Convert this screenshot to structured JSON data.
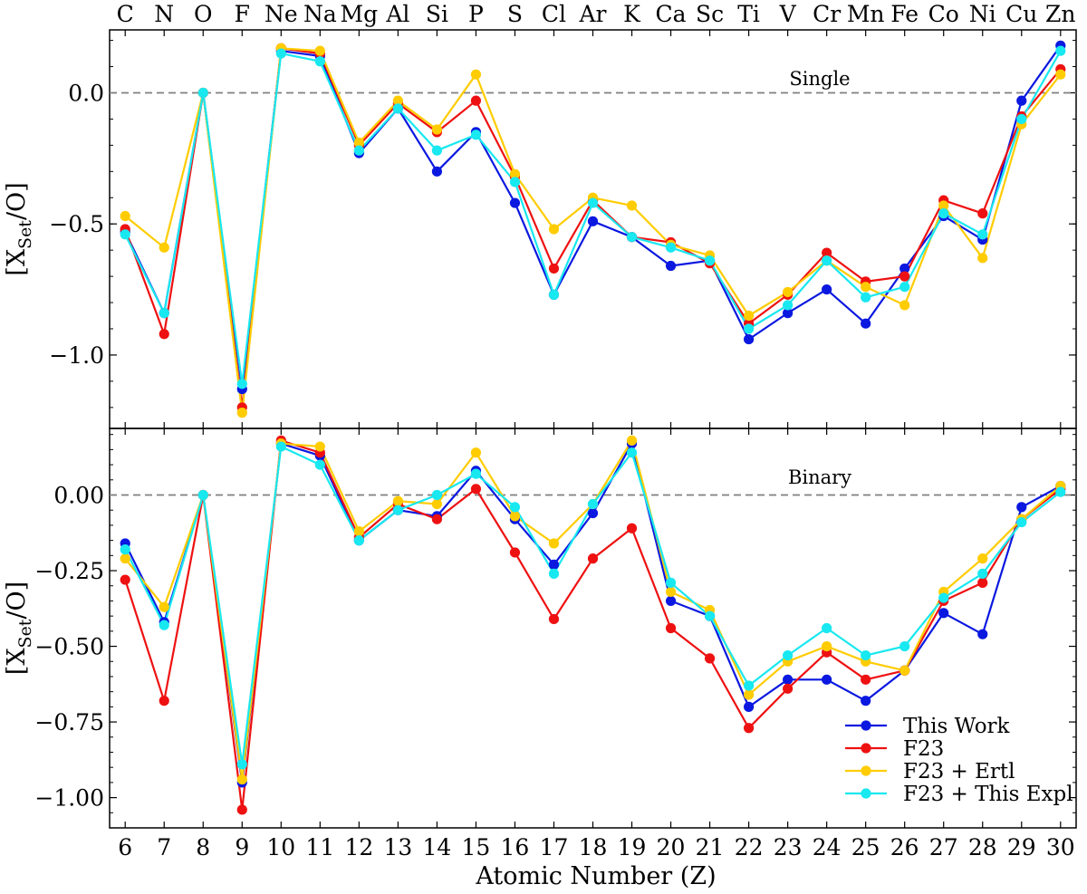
{
  "chart_data": {
    "type": "line",
    "title": "",
    "xlabel": "Atomic Number (Z)",
    "x": [
      6,
      7,
      8,
      9,
      10,
      11,
      12,
      13,
      14,
      15,
      16,
      17,
      18,
      19,
      20,
      21,
      22,
      23,
      24,
      25,
      26,
      27,
      28,
      29,
      30
    ],
    "element_labels": [
      "C",
      "N",
      "O",
      "F",
      "Ne",
      "Na",
      "Mg",
      "Al",
      "Si",
      "P",
      "S",
      "Cl",
      "Ar",
      "K",
      "Ca",
      "Sc",
      "Ti",
      "V",
      "Cr",
      "Mn",
      "Fe",
      "Co",
      "Ni",
      "Cu",
      "Zn"
    ],
    "xlim": [
      5.6,
      30.4
    ],
    "grid": false,
    "reference_line_y": 0,
    "colors": {
      "This Work": "#0a18e0",
      "F23": "#ee1111",
      "F23 + Ertl": "#ffcc00",
      "F23 + This Expl": "#18e8f0"
    },
    "legend": {
      "placement": "lower-right",
      "panel": "Binary",
      "entries": [
        "This Work",
        "F23",
        "F23 + Ertl",
        "F23 + This Expl"
      ]
    },
    "panels": [
      {
        "name": "Single",
        "label": "Single",
        "ylabel_main": "[X",
        "ylabel_sub": "Set",
        "ylabel_tail": "/O]",
        "ylim": [
          -1.28,
          0.24
        ],
        "yticks": [
          0.0,
          -0.5,
          -1.0
        ],
        "ytick_labels": [
          "0.0",
          "−0.5",
          "−1.0"
        ],
        "series": [
          {
            "name": "This Work",
            "values": [
              -0.53,
              -0.84,
              0.0,
              -1.13,
              0.16,
              0.14,
              -0.23,
              -0.06,
              -0.3,
              -0.15,
              -0.42,
              -0.77,
              -0.49,
              -0.55,
              -0.66,
              -0.64,
              -0.94,
              -0.84,
              -0.75,
              -0.88,
              -0.67,
              -0.47,
              -0.56,
              -0.03,
              0.18
            ]
          },
          {
            "name": "F23",
            "values": [
              -0.52,
              -0.92,
              0.0,
              -1.2,
              0.17,
              0.15,
              -0.2,
              -0.04,
              -0.15,
              -0.03,
              -0.32,
              -0.67,
              -0.41,
              -0.55,
              -0.57,
              -0.65,
              -0.88,
              -0.77,
              -0.61,
              -0.72,
              -0.7,
              -0.41,
              -0.46,
              -0.09,
              0.09
            ]
          },
          {
            "name": "F23 + Ertl",
            "values": [
              -0.47,
              -0.59,
              0.0,
              -1.22,
              0.17,
              0.16,
              -0.19,
              -0.03,
              -0.14,
              0.07,
              -0.31,
              -0.52,
              -0.4,
              -0.43,
              -0.58,
              -0.62,
              -0.85,
              -0.76,
              -0.64,
              -0.74,
              -0.81,
              -0.43,
              -0.63,
              -0.12,
              0.07
            ]
          },
          {
            "name": "F23 + This Expl",
            "values": [
              -0.54,
              -0.84,
              0.0,
              -1.11,
              0.15,
              0.12,
              -0.22,
              -0.06,
              -0.22,
              -0.16,
              -0.34,
              -0.77,
              -0.42,
              -0.55,
              -0.59,
              -0.64,
              -0.9,
              -0.81,
              -0.64,
              -0.78,
              -0.74,
              -0.46,
              -0.54,
              -0.1,
              0.16
            ]
          }
        ]
      },
      {
        "name": "Binary",
        "label": "Binary",
        "ylabel_main": "[X",
        "ylabel_sub": "Set",
        "ylabel_tail": "/O]",
        "ylim": [
          -1.1,
          0.22
        ],
        "yticks": [
          0.0,
          -0.25,
          -0.5,
          -0.75,
          -1.0
        ],
        "ytick_labels": [
          "0.00",
          "−0.25",
          "−0.50",
          "−0.75",
          "−1.00"
        ],
        "series": [
          {
            "name": "This Work",
            "values": [
              -0.16,
              -0.42,
              0.0,
              -0.95,
              0.17,
              0.13,
              -0.15,
              -0.05,
              -0.07,
              0.08,
              -0.08,
              -0.23,
              -0.06,
              0.17,
              -0.35,
              -0.4,
              -0.7,
              -0.61,
              -0.61,
              -0.68,
              -0.58,
              -0.39,
              -0.46,
              -0.04,
              0.03
            ]
          },
          {
            "name": "F23",
            "values": [
              -0.28,
              -0.68,
              0.0,
              -1.04,
              0.18,
              0.14,
              -0.14,
              -0.03,
              -0.08,
              0.02,
              -0.19,
              -0.41,
              -0.21,
              -0.11,
              -0.44,
              -0.54,
              -0.77,
              -0.64,
              -0.52,
              -0.61,
              -0.58,
              -0.35,
              -0.29,
              -0.08,
              0.02
            ]
          },
          {
            "name": "F23 + Ertl",
            "values": [
              -0.21,
              -0.37,
              0.0,
              -0.94,
              0.17,
              0.16,
              -0.12,
              -0.02,
              -0.03,
              0.14,
              -0.07,
              -0.16,
              -0.03,
              0.18,
              -0.32,
              -0.38,
              -0.66,
              -0.55,
              -0.5,
              -0.55,
              -0.58,
              -0.32,
              -0.21,
              -0.08,
              0.03
            ]
          },
          {
            "name": "F23 + This Expl",
            "values": [
              -0.18,
              -0.43,
              0.0,
              -0.89,
              0.16,
              0.1,
              -0.15,
              -0.05,
              0.0,
              0.07,
              -0.04,
              -0.26,
              -0.03,
              0.14,
              -0.29,
              -0.4,
              -0.63,
              -0.53,
              -0.44,
              -0.53,
              -0.5,
              -0.34,
              -0.26,
              -0.09,
              0.01
            ]
          }
        ]
      }
    ]
  }
}
